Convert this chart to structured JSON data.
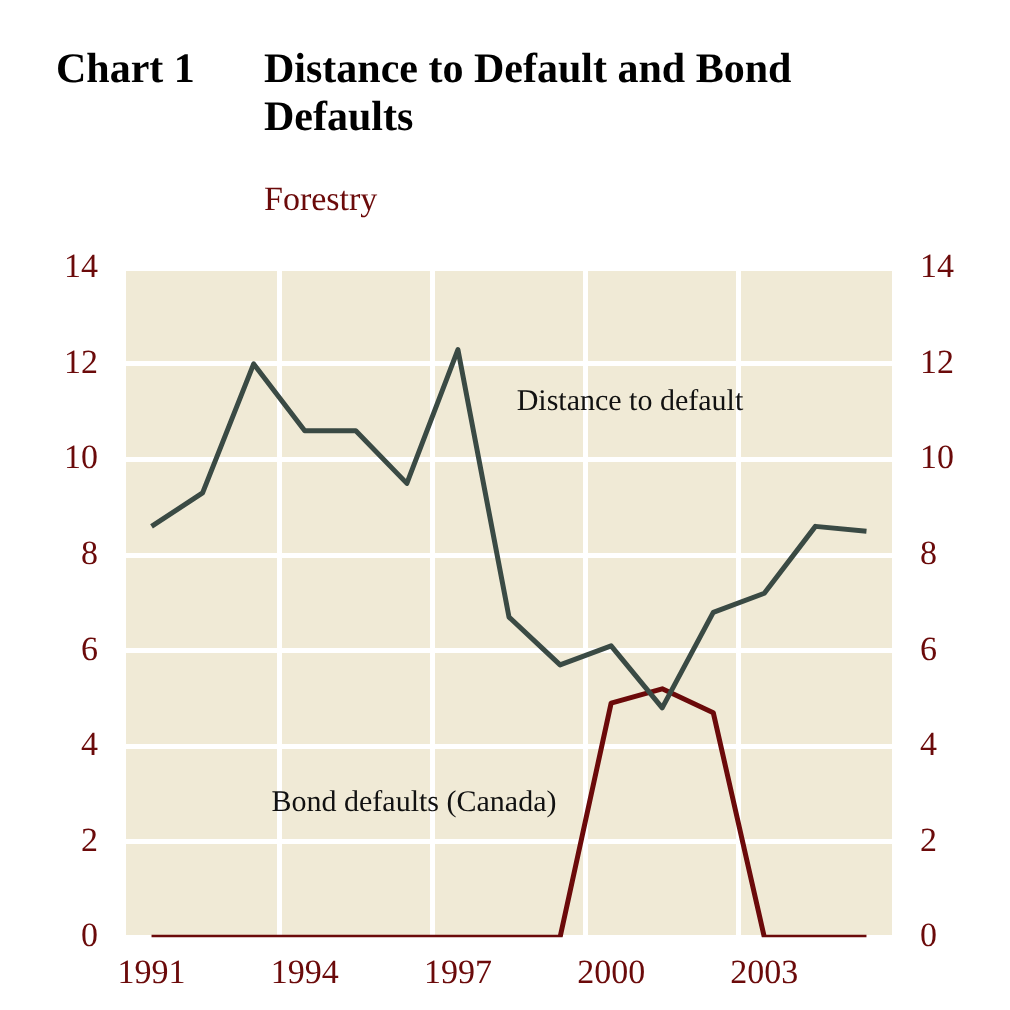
{
  "chart_data": {
    "type": "line",
    "title": "Distance to Default and Bond Defaults",
    "subtitle": "Forestry",
    "annotations": [
      "Chart 1"
    ],
    "x": [
      1991,
      1992,
      1993,
      1994,
      1995,
      1996,
      1997,
      1998,
      1999,
      2000,
      2001,
      2002,
      2003,
      2004,
      2005
    ],
    "series": [
      {
        "name": "Distance to default",
        "color": "#3a4a44",
        "values": [
          8.6,
          9.3,
          12.0,
          10.6,
          10.6,
          9.5,
          12.3,
          6.7,
          5.7,
          6.1,
          4.8,
          6.8,
          7.2,
          8.6,
          8.5
        ]
      },
      {
        "name": "Bond defaults (Canada)",
        "color": "#6b0a0a",
        "values": [
          0,
          0,
          0,
          0,
          0,
          0,
          0,
          0,
          0,
          4.9,
          5.2,
          4.7,
          0,
          0,
          0
        ]
      }
    ],
    "xlim": [
      1990.5,
      2005.5
    ],
    "xticks": [
      1991,
      1994,
      1997,
      2000,
      2003,
      {
        "value": 1993.5,
        "label": null
      },
      {
        "value": 1996.5,
        "label": null
      },
      {
        "value": 1999.5,
        "label": null
      },
      {
        "value": 2002.5,
        "label": null
      }
    ],
    "ylim": [
      0,
      14
    ],
    "yticks": [
      0,
      2,
      4,
      6,
      8,
      10,
      12,
      14
    ],
    "y2lim": [
      0,
      14
    ],
    "y2ticks": [
      0,
      2,
      4,
      6,
      8,
      10,
      12,
      14
    ],
    "grid": true,
    "legend": false,
    "marker": "none",
    "line_style": "solid"
  }
}
